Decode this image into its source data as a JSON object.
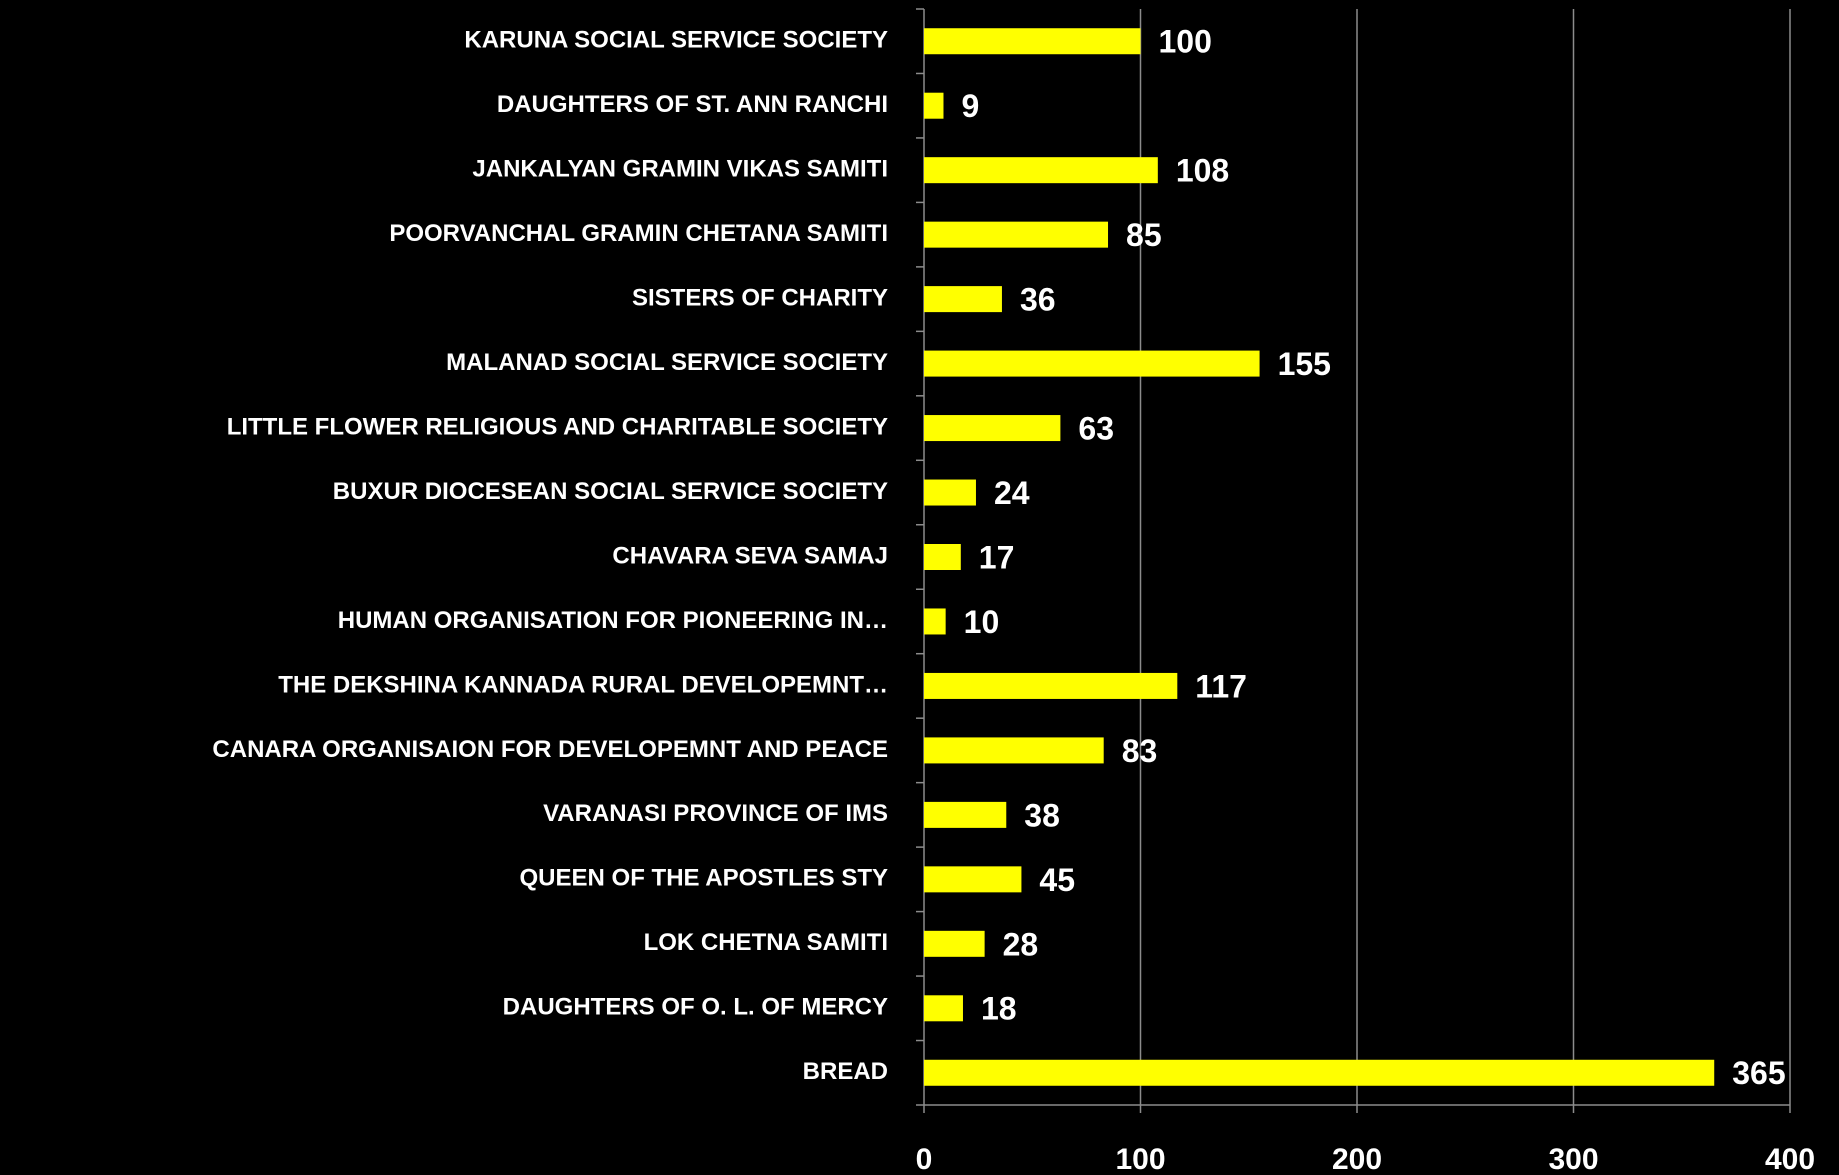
{
  "chart_data": {
    "type": "bar",
    "orientation": "horizontal",
    "categories": [
      "KARUNA SOCIAL SERVICE SOCIETY",
      "DAUGHTERS OF ST. ANN RANCHI",
      "JANKALYAN GRAMIN VIKAS SAMITI",
      "POORVANCHAL GRAMIN CHETANA SAMITI",
      "SISTERS OF CHARITY",
      "MALANAD SOCIAL SERVICE SOCIETY",
      "LITTLE FLOWER RELIGIOUS AND CHARITABLE SOCIETY",
      "BUXUR DIOCESEAN SOCIAL SERVICE SOCIETY",
      "CHAVARA SEVA SAMAJ",
      "HUMAN ORGANISATION FOR PIONEERING IN…",
      "THE DEKSHINA KANNADA RURAL DEVELOPEMNT…",
      "CANARA ORGANISAION FOR DEVELOPEMNT AND PEACE",
      "VARANASI PROVINCE OF IMS",
      "QUEEN OF THE APOSTLES STY",
      "LOK CHETNA SAMITI",
      "DAUGHTERS OF O. L. OF MERCY",
      "BREAD"
    ],
    "values": [
      100,
      9,
      108,
      85,
      36,
      155,
      63,
      24,
      17,
      10,
      117,
      83,
      38,
      45,
      28,
      18,
      365
    ],
    "color": "#ffff00",
    "xlim": [
      0,
      400
    ],
    "xticks": [
      0,
      100,
      200,
      300,
      400
    ],
    "grid": true
  }
}
